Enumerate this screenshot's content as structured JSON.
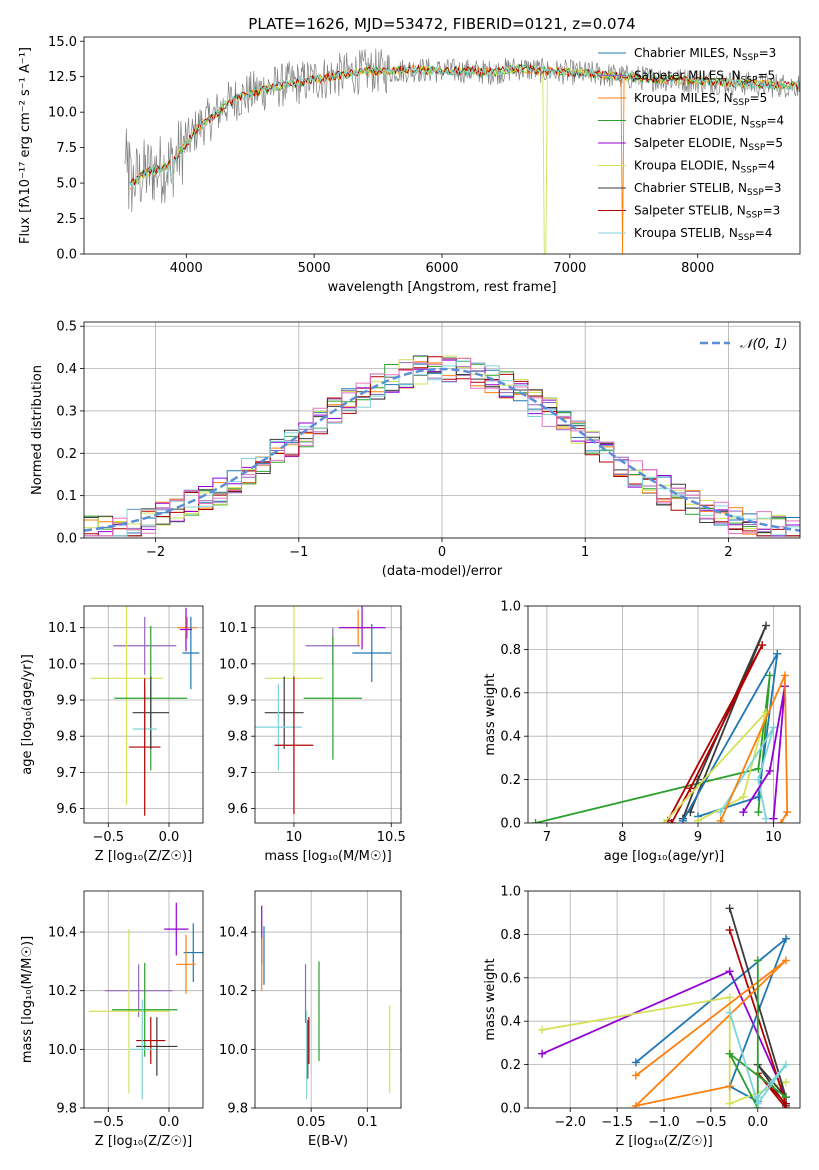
{
  "series_colors": [
    "#1f77b4",
    "#9467bd",
    "#ff7f0e",
    "#2ca02c",
    "#9400d3",
    "#d4e157",
    "#3b3b3b",
    "#b00000",
    "#7fd3d8"
  ],
  "chart_data": [
    {
      "id": "spectrum",
      "type": "line",
      "title": "PLATE=1626, MJD=53472, FIBERID=0121, z=0.074",
      "xlabel": "wavelength [Angstrom, rest frame]",
      "ylabel": "Flux [fλ10⁻¹⁷ erg cm⁻² s⁻¹ A⁻¹]",
      "xlim": [
        3200,
        8800
      ],
      "ylim": [
        0,
        15.3
      ],
      "xticks": [
        4000,
        5000,
        6000,
        7000,
        8000
      ],
      "yticks": [
        0.0,
        2.5,
        5.0,
        7.5,
        10.0,
        12.5,
        15.0
      ],
      "grid": false,
      "legend": "right",
      "legend_entries": [
        "Chabrier MILES, N_SSP=3",
        "Salpeter MILES, N_SSP=5",
        "Kroupa MILES, N_SSP=5",
        "Chabrier ELODIE, N_SSP=4",
        "Salpeter ELODIE, N_SSP=5",
        "Kroupa ELODIE, N_SSP=4",
        "Chabrier STELIB, N_SSP=3",
        "Salpeter STELIB, N_SSP=3",
        "Kroupa STELIB, N_SSP=4"
      ],
      "data_curve": {
        "x": [
          3520,
          3600,
          3700,
          3800,
          3900,
          4000,
          4100,
          4200,
          4300,
          4400,
          4500,
          4600,
          4700,
          4800,
          4900,
          5000,
          5200,
          5400,
          5600,
          5800,
          6000,
          6200,
          6400,
          6600,
          6800,
          7000,
          7200,
          7400,
          7600,
          7800,
          8000,
          8200,
          8400,
          8600,
          8800
        ],
        "y": [
          4.5,
          5.2,
          5.8,
          6.0,
          6.5,
          7.8,
          9.0,
          9.6,
          10.5,
          11.0,
          11.3,
          11.6,
          11.8,
          12.0,
          12.1,
          12.3,
          12.6,
          12.9,
          12.9,
          13.0,
          12.9,
          12.9,
          12.8,
          13.1,
          12.9,
          12.8,
          12.7,
          12.5,
          12.4,
          12.3,
          12.2,
          12.1,
          12.0,
          11.9,
          11.9
        ]
      }
    },
    {
      "id": "residuals",
      "type": "line",
      "title": "",
      "xlabel": "(data-model)/error",
      "ylabel": "Normed distribution",
      "xlim": [
        -2.5,
        2.5
      ],
      "ylim": [
        0,
        0.51
      ],
      "xticks": [
        -2,
        -1,
        0,
        1,
        2
      ],
      "yticks": [
        0.0,
        0.1,
        0.2,
        0.3,
        0.4,
        0.5
      ],
      "grid": true,
      "legend": "top-right",
      "legend_entries": [
        "𝒩(0, 1)"
      ],
      "bin_width": 0.1
    },
    {
      "id": "age-vs-Z",
      "type": "scatter",
      "xlabel": "Z [log₁₀(Z/Z☉)]",
      "ylabel": "age  [log₁₀(age/yr)]",
      "xlim": [
        -0.7,
        0.28
      ],
      "ylim": [
        9.56,
        10.16
      ],
      "xticks": [
        -0.5,
        0.0
      ],
      "xticklabels": [
        "−0.5",
        "0.0"
      ],
      "yticks": [
        9.6,
        9.7,
        9.8,
        9.9,
        10.0,
        10.1
      ],
      "grid": true,
      "points": [
        {
          "x": 0.15,
          "y": 10.1,
          "ex": 0.08,
          "ey": 0.03,
          "c": 2
        },
        {
          "x": 0.18,
          "y": 10.03,
          "ex": 0.07,
          "ey": 0.1,
          "c": 0
        },
        {
          "x": 0.14,
          "y": 10.095,
          "ex": 0.05,
          "ey": 0.06,
          "c": 4
        },
        {
          "x": -0.2,
          "y": 10.05,
          "ex": 0.26,
          "ey": 0.08,
          "c": 1
        },
        {
          "x": -0.35,
          "y": 9.96,
          "ex": 0.3,
          "ey": 0.35,
          "c": 5
        },
        {
          "x": -0.15,
          "y": 9.905,
          "ex": 0.3,
          "ey": 0.2,
          "c": 3
        },
        {
          "x": -0.15,
          "y": 9.865,
          "ex": 0.15,
          "ey": 0.1,
          "c": 6
        },
        {
          "x": -0.2,
          "y": 9.82,
          "ex": 0.1,
          "ey": 0.12,
          "c": 8
        },
        {
          "x": -0.2,
          "y": 9.77,
          "ex": 0.13,
          "ey": 0.19,
          "c": 7
        }
      ]
    },
    {
      "id": "age-vs-mass",
      "type": "scatter",
      "xlabel": "mass [log₁₀(M/M☉)]",
      "ylabel": "",
      "xlim": [
        9.8,
        10.55
      ],
      "ylim": [
        9.56,
        10.16
      ],
      "xticks": [
        10.0,
        10.5
      ],
      "yticks": [
        9.6,
        9.7,
        9.8,
        9.9,
        10.0,
        10.1
      ],
      "grid": true,
      "points": [
        {
          "x": 10.33,
          "y": 10.1,
          "ex": 0.08,
          "ey": 0.05,
          "c": 2
        },
        {
          "x": 10.4,
          "y": 10.03,
          "ex": 0.1,
          "ey": 0.08,
          "c": 0
        },
        {
          "x": 10.35,
          "y": 10.1,
          "ex": 0.12,
          "ey": 0.06,
          "c": 4
        },
        {
          "x": 10.2,
          "y": 10.05,
          "ex": 0.14,
          "ey": 0.05,
          "c": 1
        },
        {
          "x": 10.0,
          "y": 9.96,
          "ex": 0.15,
          "ey": 0.35,
          "c": 5
        },
        {
          "x": 10.2,
          "y": 9.905,
          "ex": 0.15,
          "ey": 0.17,
          "c": 3
        },
        {
          "x": 9.95,
          "y": 9.865,
          "ex": 0.1,
          "ey": 0.1,
          "c": 6
        },
        {
          "x": 9.92,
          "y": 9.825,
          "ex": 0.12,
          "ey": 0.12,
          "c": 8
        },
        {
          "x": 10.0,
          "y": 9.775,
          "ex": 0.1,
          "ey": 0.19,
          "c": 7
        }
      ]
    },
    {
      "id": "massweight-vs-age",
      "type": "line",
      "xlabel": "age  [log₁₀(age/yr)]",
      "ylabel": "mass weight",
      "xlim": [
        6.75,
        10.35
      ],
      "ylim": [
        0,
        1.0
      ],
      "xticks": [
        7,
        8,
        9,
        10
      ],
      "yticks": [
        0.0,
        0.2,
        0.4,
        0.6,
        0.8,
        1.0
      ],
      "grid": true,
      "series": [
        {
          "c": 3,
          "x": [
            6.85,
            9.8,
            9.95,
            9.8
          ],
          "y": [
            0.0,
            0.25,
            0.68,
            0.05
          ]
        },
        {
          "c": 6,
          "x": [
            8.9,
            9.9,
            9.0,
            8.8
          ],
          "y": [
            0.05,
            0.91,
            0.2,
            0.02
          ]
        },
        {
          "c": 7,
          "x": [
            8.6,
            9.85,
            8.9,
            8.65
          ],
          "y": [
            0.01,
            0.82,
            0.16,
            0.0
          ]
        },
        {
          "c": 0,
          "x": [
            8.8,
            10.05,
            9.8,
            9.0
          ],
          "y": [
            0.01,
            0.78,
            0.12,
            0.03
          ]
        },
        {
          "c": 5,
          "x": [
            8.55,
            9.9,
            9.6,
            9.0
          ],
          "y": [
            0.0,
            0.51,
            0.12,
            0.01
          ]
        },
        {
          "c": 8,
          "x": [
            9.3,
            10.0,
            9.8,
            9.9
          ],
          "y": [
            0.05,
            0.44,
            0.2,
            0.02
          ]
        },
        {
          "c": 4,
          "x": [
            9.6,
            9.95,
            10.15,
            10.0
          ],
          "y": [
            0.05,
            0.24,
            0.63,
            0.02
          ]
        },
        {
          "c": 2,
          "x": [
            9.3,
            10.15,
            10.18,
            10.1
          ],
          "y": [
            0.01,
            0.68,
            0.05,
            0.0
          ]
        }
      ]
    },
    {
      "id": "mass-vs-Z",
      "type": "scatter",
      "xlabel": "Z [log₁₀(Z/Z☉)]",
      "ylabel": "mass [log₁₀(M/M☉)]",
      "xlim": [
        -0.7,
        0.28
      ],
      "ylim": [
        9.8,
        10.54
      ],
      "xticks": [
        -0.5,
        0.0
      ],
      "xticklabels": [
        "−0.5",
        "0.0"
      ],
      "yticks": [
        9.8,
        10.0,
        10.2,
        10.4
      ],
      "grid": true,
      "points": [
        {
          "x": 0.06,
          "y": 10.41,
          "ex": 0.1,
          "ey": 0.09,
          "c": 4
        },
        {
          "x": 0.2,
          "y": 10.33,
          "ex": 0.08,
          "ey": 0.1,
          "c": 0
        },
        {
          "x": 0.14,
          "y": 10.29,
          "ex": 0.08,
          "ey": 0.1,
          "c": 2
        },
        {
          "x": -0.25,
          "y": 10.2,
          "ex": 0.28,
          "ey": 0.09,
          "c": 1
        },
        {
          "x": -0.33,
          "y": 10.13,
          "ex": 0.33,
          "ey": 0.28,
          "c": 5
        },
        {
          "x": -0.2,
          "y": 10.135,
          "ex": 0.27,
          "ey": 0.16,
          "c": 3
        },
        {
          "x": -0.1,
          "y": 10.01,
          "ex": 0.17,
          "ey": 0.1,
          "c": 6
        },
        {
          "x": -0.15,
          "y": 10.03,
          "ex": 0.12,
          "ey": 0.08,
          "c": 7
        },
        {
          "x": -0.22,
          "y": 10.0,
          "ex": 0.1,
          "ey": 0.17,
          "c": 8
        }
      ]
    },
    {
      "id": "mass-vs-EBV",
      "type": "scatter",
      "xlabel": "E(B-V)",
      "ylabel": "",
      "xlim": [
        0.0,
        0.13
      ],
      "ylim": [
        9.8,
        10.54
      ],
      "xticks": [
        0.05,
        0.1
      ],
      "yticks": [
        9.8,
        10.0,
        10.2,
        10.4
      ],
      "grid": true,
      "points": [
        {
          "x": 0.006,
          "y": 10.39,
          "ex": 0,
          "ey": 0.1,
          "c": 4
        },
        {
          "x": 0.008,
          "y": 10.32,
          "ex": 0,
          "ey": 0.1,
          "c": 0
        },
        {
          "x": 0.006,
          "y": 10.29,
          "ex": 0,
          "ey": 0.09,
          "c": 2
        },
        {
          "x": 0.045,
          "y": 10.19,
          "ex": 0,
          "ey": 0.1,
          "c": 1
        },
        {
          "x": 0.12,
          "y": 10.0,
          "ex": 0,
          "ey": 0.15,
          "c": 5
        },
        {
          "x": 0.057,
          "y": 10.13,
          "ex": 0,
          "ey": 0.17,
          "c": 3
        },
        {
          "x": 0.047,
          "y": 10.0,
          "ex": 0,
          "ey": 0.1,
          "c": 6
        },
        {
          "x": 0.048,
          "y": 10.03,
          "ex": 0,
          "ey": 0.08,
          "c": 7
        },
        {
          "x": 0.046,
          "y": 9.98,
          "ex": 0,
          "ey": 0.15,
          "c": 8
        }
      ]
    },
    {
      "id": "massweight-vs-Z",
      "type": "line",
      "xlabel": "Z [log₁₀(Z/Z☉)]",
      "ylabel": "mass weight",
      "xlim": [
        -2.45,
        0.45
      ],
      "ylim": [
        0,
        1.0
      ],
      "xticks": [
        -2.0,
        -1.5,
        -1.0,
        -0.5,
        0.0
      ],
      "xticklabels": [
        "−2.0",
        "−1.5",
        "−1.0",
        "−0.5",
        "0.0"
      ],
      "yticks": [
        0.0,
        0.2,
        0.4,
        0.6,
        0.8,
        1.0
      ],
      "grid": true,
      "series": [
        {
          "c": 4,
          "x": [
            -2.3,
            -0.3,
            0.3,
            0.3
          ],
          "y": [
            0.25,
            0.63,
            0.05,
            0.02
          ]
        },
        {
          "c": 0,
          "x": [
            -1.3,
            0.3,
            -0.3,
            0.0
          ],
          "y": [
            0.21,
            0.78,
            0.1,
            0.03
          ]
        },
        {
          "c": 5,
          "x": [
            -2.3,
            -0.3,
            -0.3,
            0.3
          ],
          "y": [
            0.36,
            0.51,
            0.02,
            0.12
          ]
        },
        {
          "c": 6,
          "x": [
            -0.3,
            0.3,
            0.0,
            0.3
          ],
          "y": [
            0.92,
            0.05,
            0.2,
            0.01
          ]
        },
        {
          "c": 7,
          "x": [
            -0.3,
            0.3,
            0.0,
            0.3
          ],
          "y": [
            0.82,
            0.02,
            0.16,
            0.0
          ]
        },
        {
          "c": 2,
          "x": [
            -1.3,
            0.3,
            -1.3,
            -0.3
          ],
          "y": [
            0.15,
            0.68,
            0.01,
            0.1
          ]
        },
        {
          "c": 3,
          "x": [
            0.0,
            0.0,
            -0.3,
            0.3
          ],
          "y": [
            0.68,
            0.0,
            0.25,
            0.05
          ]
        },
        {
          "c": 8,
          "x": [
            -0.3,
            0.0,
            0.3,
            0.0
          ],
          "y": [
            0.44,
            0.02,
            0.2,
            0.05
          ]
        }
      ]
    }
  ]
}
